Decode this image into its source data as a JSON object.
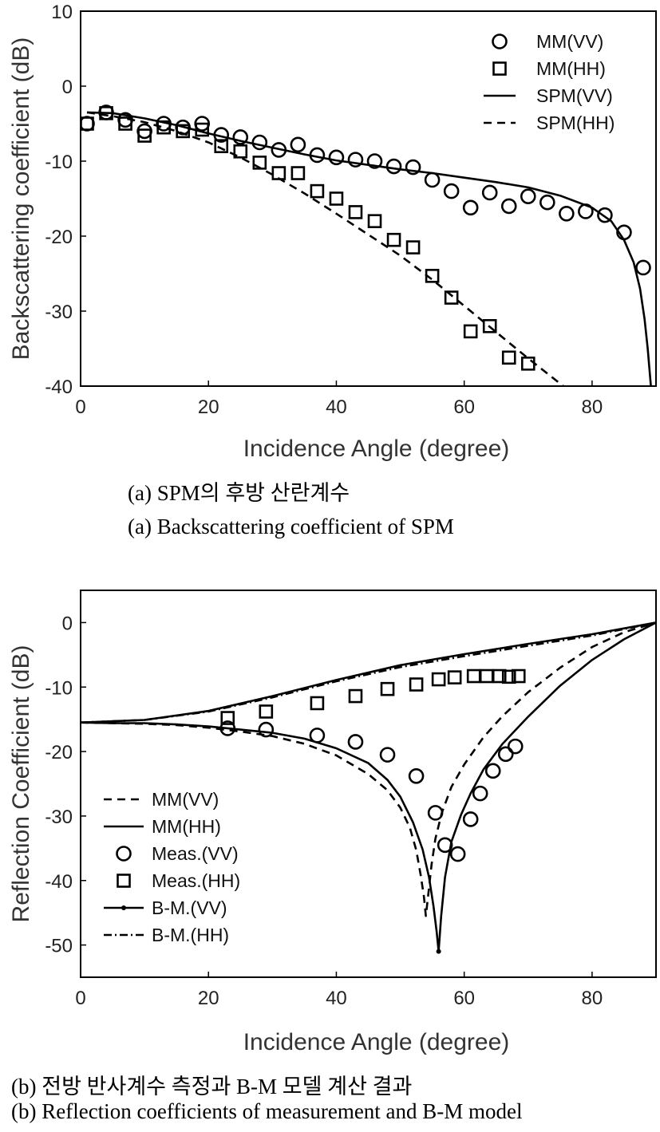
{
  "chart_data": [
    {
      "type": "scatter+line",
      "id": "a",
      "xlabel": "Incidence Angle (degree)",
      "ylabel": "Backscattering coefficient (dB)",
      "xlim": [
        0,
        90
      ],
      "ylim": [
        -40,
        10
      ],
      "xticks": [
        0,
        20,
        40,
        60,
        80
      ],
      "yticks": [
        -40,
        -30,
        -20,
        -10,
        0,
        10
      ],
      "legend_position": "top-right",
      "caption_kr": "(a) SPM의 후방 산란계수",
      "caption_en": "(a) Backscattering coefficient of SPM",
      "series": [
        {
          "name": "MM(VV)",
          "style": "circle",
          "x": [
            1,
            4,
            7,
            10,
            13,
            16,
            19,
            22,
            25,
            28,
            31,
            34,
            37,
            40,
            43,
            46,
            49,
            52,
            55,
            58,
            61,
            64,
            67,
            70,
            73,
            76,
            79,
            82,
            85,
            88
          ],
          "y": [
            -5,
            -3.5,
            -4.5,
            -6,
            -5,
            -5.5,
            -5,
            -6.5,
            -6.8,
            -7.5,
            -8.5,
            -7.8,
            -9.2,
            -9.5,
            -9.8,
            -10,
            -10.7,
            -10.8,
            -12.5,
            -14,
            -16.2,
            -14.2,
            -16,
            -14.7,
            -15.5,
            -17,
            -16.7,
            -17.2,
            -19.5,
            -24.2
          ]
        },
        {
          "name": "MM(HH)",
          "style": "square",
          "x": [
            1,
            4,
            7,
            10,
            13,
            16,
            19,
            22,
            25,
            28,
            31,
            34,
            37,
            40,
            43,
            46,
            49,
            52,
            55,
            58,
            61,
            64,
            67,
            70
          ],
          "y": [
            -5,
            -3.6,
            -5,
            -6.6,
            -5.5,
            -6,
            -5.8,
            -8,
            -8.7,
            -10.2,
            -11.6,
            -11.6,
            -14,
            -15,
            -16.8,
            -18,
            -20.5,
            -21.5,
            -25.3,
            -28.2,
            -32.7,
            -32,
            -36.2,
            -37
          ]
        },
        {
          "name": "SPM(VV)",
          "style": "solid",
          "x": [
            1,
            5,
            10,
            15,
            20,
            25,
            30,
            35,
            40,
            45,
            50,
            55,
            60,
            65,
            70,
            75,
            80,
            83,
            85,
            86.5,
            87.5,
            88.2,
            88.7,
            89.2
          ],
          "y": [
            -3.5,
            -3.6,
            -4.3,
            -5.2,
            -6.3,
            -7.3,
            -8.2,
            -9.1,
            -9.9,
            -10.5,
            -11.1,
            -11.6,
            -12.2,
            -12.8,
            -13.5,
            -14.6,
            -16.2,
            -18,
            -20.5,
            -23.5,
            -27,
            -31,
            -35,
            -40
          ]
        },
        {
          "name": "SPM(HH)",
          "style": "dashed",
          "x": [
            1,
            5,
            10,
            15,
            20,
            25,
            30,
            35,
            40,
            45,
            50,
            55,
            60,
            65,
            70,
            75.5
          ],
          "y": [
            -3.5,
            -4,
            -4.8,
            -6,
            -7.5,
            -9.5,
            -11.8,
            -14.3,
            -17,
            -19.8,
            -22.6,
            -25.8,
            -29.3,
            -32.8,
            -36.3,
            -40
          ]
        }
      ]
    },
    {
      "type": "scatter+line",
      "id": "b",
      "xlabel": "Incidence Angle (degree)",
      "ylabel": "Reflection Coefficient (dB)",
      "xlim": [
        0,
        90
      ],
      "ylim": [
        -55,
        5
      ],
      "xticks": [
        0,
        20,
        40,
        60,
        80
      ],
      "yticks": [
        -50,
        -40,
        -30,
        -20,
        -10,
        0
      ],
      "legend_position": "bottom-left",
      "caption_kr": "(b) 전방 반사계수 측정과 B-M 모델 계산 결과",
      "caption_en": "(b) Reflection coefficients of measurement and B-M model",
      "series": [
        {
          "name": "MM(VV)",
          "style": "dashed",
          "x": [
            0,
            5,
            10,
            15,
            20,
            25,
            30,
            35,
            40,
            45,
            48,
            50,
            51.5,
            52.5,
            53.2,
            53.7,
            54,
            54.4,
            54.9,
            55.5,
            56.5,
            58,
            60,
            63,
            66,
            70,
            75,
            80,
            85,
            90
          ],
          "y": [
            -15.5,
            -15.6,
            -15.7,
            -15.9,
            -16.3,
            -16.9,
            -17.6,
            -18.8,
            -20.6,
            -23.5,
            -26,
            -28.7,
            -31.8,
            -35.3,
            -39.2,
            -42.5,
            -45.5,
            -42,
            -37.5,
            -33.5,
            -29.5,
            -25.5,
            -22,
            -17.8,
            -14.5,
            -10.8,
            -7,
            -3.8,
            -1.5,
            0
          ]
        },
        {
          "name": "MM(HH)",
          "style": "solid",
          "x": [
            0,
            10,
            20,
            30,
            40,
            50,
            60,
            70,
            80,
            90
          ],
          "y": [
            -15.5,
            -15.1,
            -13.7,
            -11.4,
            -8.9,
            -6.6,
            -4.9,
            -3.3,
            -1.8,
            0
          ]
        },
        {
          "name": "Meas.(VV)",
          "style": "circle",
          "x": [
            23,
            29,
            37,
            43,
            48,
            52.5,
            55.5,
            57,
            59,
            61,
            62.5,
            64.5,
            66.5,
            68
          ],
          "y": [
            -16.4,
            -16.6,
            -17.5,
            -18.5,
            -20.5,
            -23.8,
            -29.5,
            -34.5,
            -35.9,
            -30.5,
            -26.5,
            -23,
            -20.4,
            -19.2
          ]
        },
        {
          "name": "Meas.(HH)",
          "style": "square",
          "x": [
            23,
            29,
            37,
            43,
            48,
            52.5,
            56,
            58.5,
            61.5,
            63.5,
            65.5,
            67,
            68.5
          ],
          "y": [
            -14.8,
            -13.8,
            -12.5,
            -11.4,
            -10.3,
            -9.6,
            -8.8,
            -8.5,
            -8.3,
            -8.3,
            -8.3,
            -8.4,
            -8.3
          ]
        },
        {
          "name": "B-M.(VV)",
          "style": "solid-dot",
          "x": [
            0,
            5,
            10,
            15,
            20,
            25,
            30,
            35,
            40,
            45,
            48,
            50,
            52,
            53.5,
            54.5,
            55.2,
            55.7,
            56,
            56.4,
            57,
            58,
            59.5,
            61,
            63,
            66,
            70,
            75,
            80,
            85,
            90
          ],
          "y": [
            -15.5,
            -15.6,
            -15.6,
            -15.8,
            -16.1,
            -16.6,
            -17.1,
            -18,
            -19.5,
            -21.8,
            -24.4,
            -27,
            -31,
            -35.2,
            -39.5,
            -44,
            -48,
            -51,
            -45.5,
            -39.5,
            -34,
            -29.8,
            -26.5,
            -22.8,
            -18.8,
            -14.6,
            -9.8,
            -5.8,
            -2.6,
            0
          ]
        },
        {
          "name": "B-M.(HH)",
          "style": "dashdot",
          "x": [
            0,
            10,
            20,
            30,
            40,
            50,
            60,
            70,
            80,
            90
          ],
          "y": [
            -15.5,
            -15.1,
            -13.8,
            -11.6,
            -9.1,
            -6.9,
            -5.2,
            -3.6,
            -2,
            0
          ]
        }
      ]
    }
  ]
}
